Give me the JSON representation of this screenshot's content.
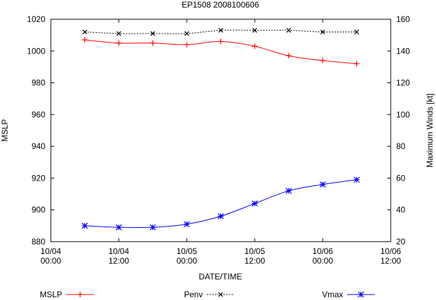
{
  "chart_data": {
    "type": "line",
    "title": "EP1508 2008100606",
    "xlabel": "DATE/TIME",
    "ylabel": "MSLP",
    "y2label": "Maximum Winds [kt]",
    "grid": false,
    "legend_position": "bottom",
    "xaxis": {
      "range_hours": [
        0,
        60
      ],
      "ticks": [
        {
          "hour": 0,
          "line1": "10/04",
          "line2": "00:00"
        },
        {
          "hour": 12,
          "line1": "10/04",
          "line2": "12:00"
        },
        {
          "hour": 24,
          "line1": "10/05",
          "line2": "00:00"
        },
        {
          "hour": 36,
          "line1": "10/05",
          "line2": "12:00"
        },
        {
          "hour": 48,
          "line1": "10/06",
          "line2": "00:00"
        },
        {
          "hour": 60,
          "line1": "10/06",
          "line2": "12:00"
        }
      ]
    },
    "ylim": [
      880,
      1020
    ],
    "yticks": [
      880,
      900,
      920,
      940,
      960,
      980,
      1000,
      1020
    ],
    "y2lim": [
      20,
      160
    ],
    "y2ticks": [
      20,
      40,
      60,
      80,
      100,
      120,
      140,
      160
    ],
    "x": [
      6,
      12,
      18,
      24,
      30,
      36,
      42,
      48,
      54
    ],
    "series": [
      {
        "name": "MSLP",
        "axis": "left",
        "color": "#ff0000",
        "marker": "plus",
        "values": [
          1007,
          1005,
          1005,
          1004,
          1006,
          1003,
          997,
          994,
          992
        ]
      },
      {
        "name": "Penv",
        "axis": "left",
        "color": "#000000",
        "marker": "x",
        "dashed": true,
        "values": [
          1012,
          1011,
          1011,
          1011,
          1013,
          1013,
          1013,
          1012,
          1012
        ]
      },
      {
        "name": "Vmax",
        "axis": "right",
        "color": "#0000ff",
        "marker": "star",
        "values": [
          30,
          29,
          29,
          31,
          36,
          44,
          52,
          56,
          59
        ]
      }
    ]
  }
}
